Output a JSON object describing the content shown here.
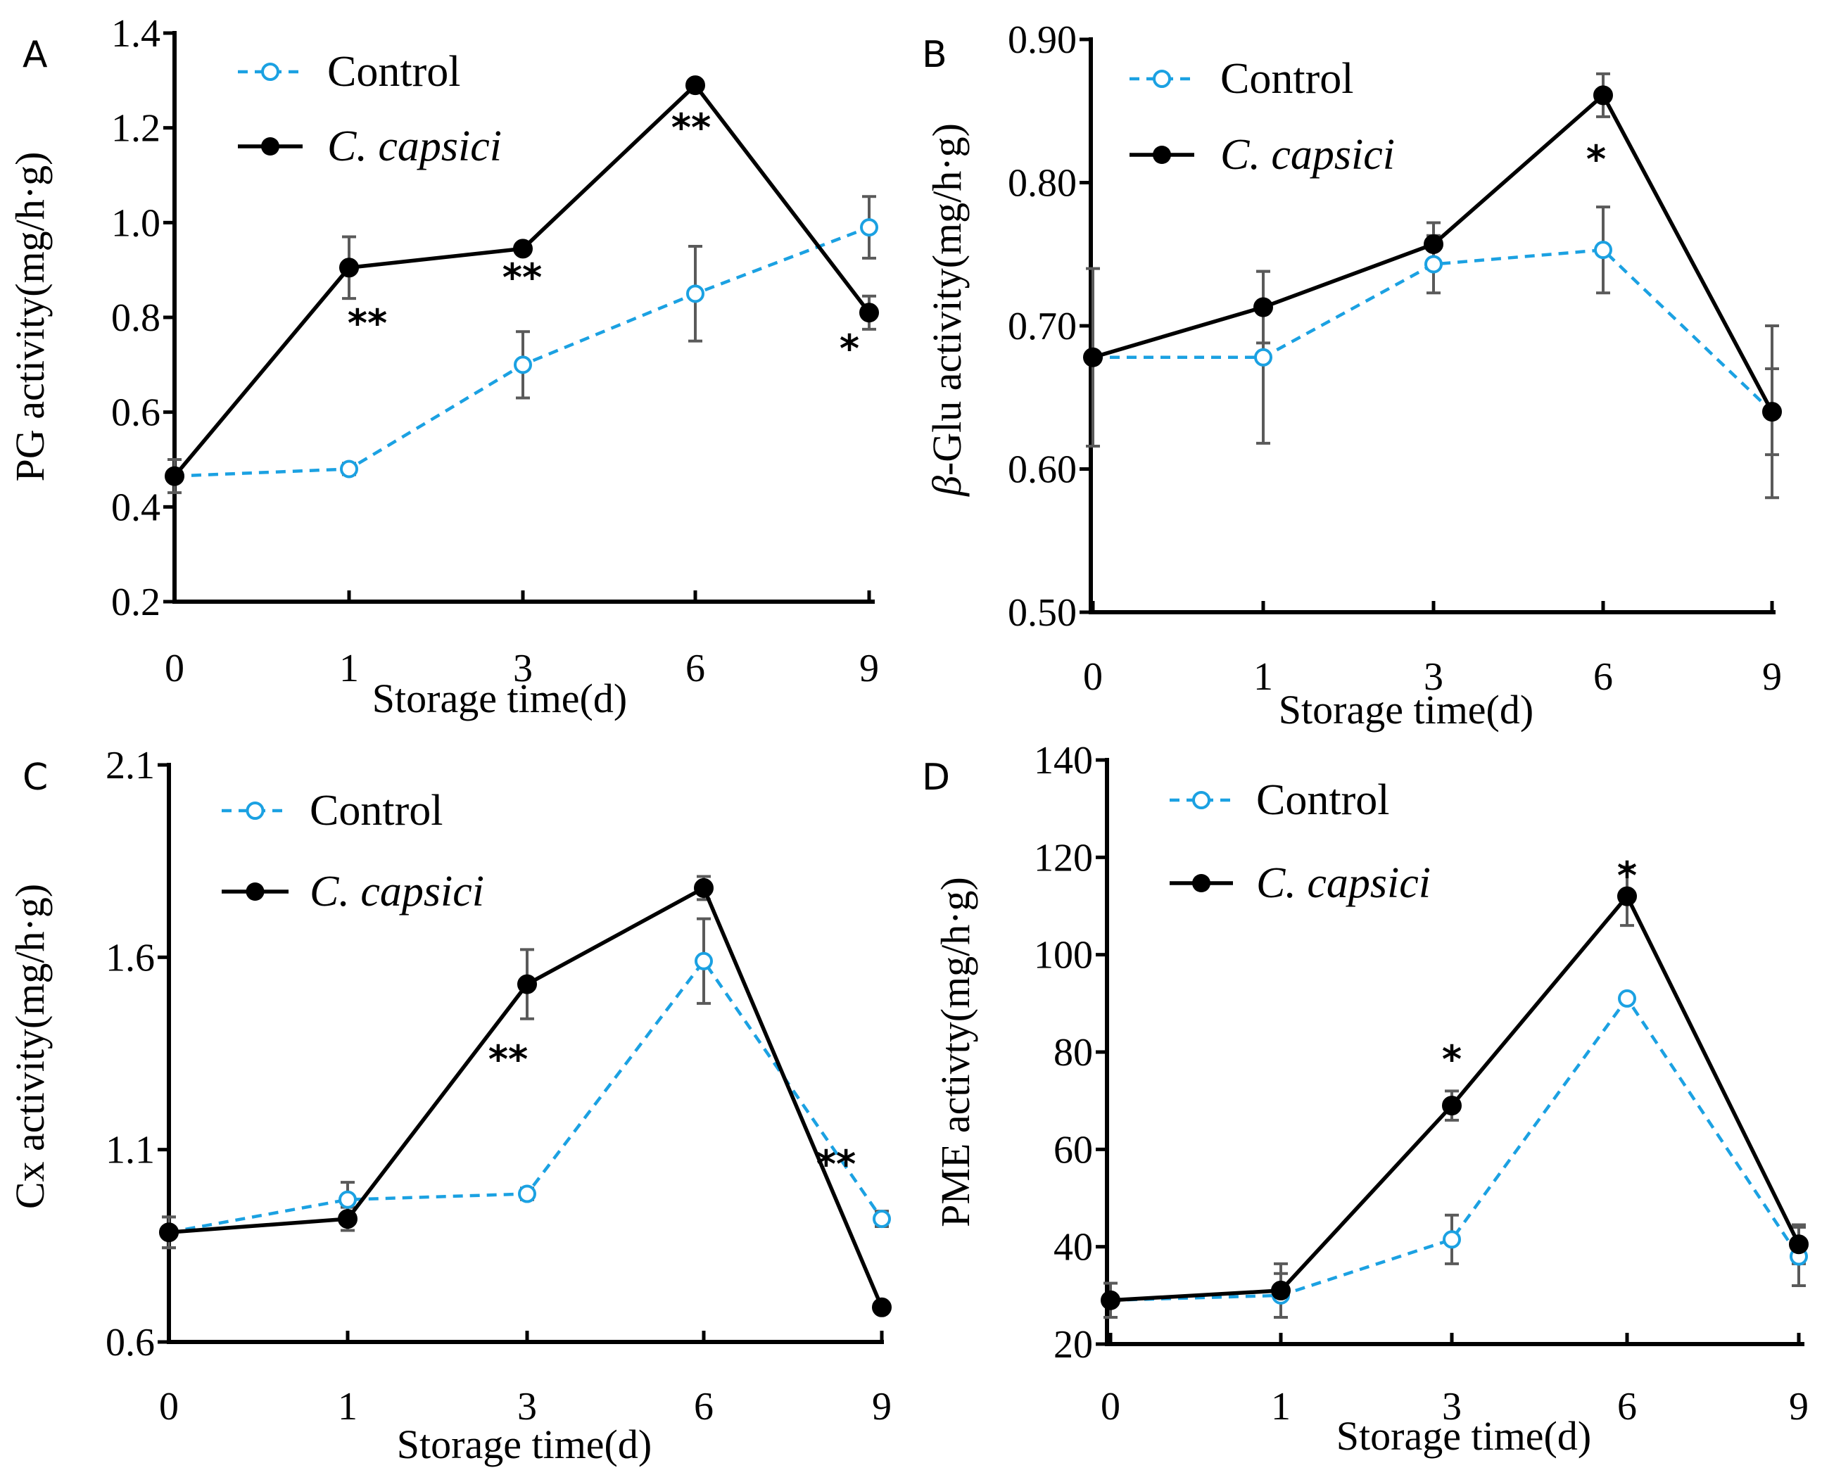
{
  "colors": {
    "control": "#1BA1E2",
    "treated": "#000000",
    "axis": "#000000",
    "errorbar": "#5A5A5A"
  },
  "chart_data": [
    {
      "panel": "A",
      "type": "line",
      "ylabel": "PG activity(mg/h·g)",
      "xlabel": "Storage time(d)",
      "categories": [
        "0",
        "1",
        "3",
        "6",
        "9"
      ],
      "ylim": [
        0.2,
        1.4
      ],
      "yticks": [
        "0.2",
        "0.4",
        "0.6",
        "0.8",
        "1.0",
        "1.2",
        "1.4"
      ],
      "legend": [
        "Control",
        "C. capsici"
      ],
      "series": [
        {
          "name": "Control",
          "values": [
            0.465,
            0.48,
            0.7,
            0.85,
            0.99
          ],
          "errors": [
            0,
            0.012,
            0.07,
            0.1,
            0.065
          ]
        },
        {
          "name": "C. capsici",
          "values": [
            0.465,
            0.905,
            0.945,
            1.29,
            0.81
          ],
          "errors": [
            0.035,
            0.065,
            0,
            0,
            0.035
          ]
        }
      ],
      "annotations": [
        "",
        "**",
        "**",
        "**",
        "*"
      ]
    },
    {
      "panel": "B",
      "type": "line",
      "ylabel": "β-Glu activity(mg/h·g)",
      "ylabel_symbol": "β",
      "ylabel_rest": "-Glu activity(mg/h·g)",
      "xlabel": "Storage time(d)",
      "categories": [
        "0",
        "1",
        "3",
        "6",
        "9"
      ],
      "ylim": [
        0.5,
        0.9
      ],
      "yticks": [
        "0.50",
        "0.60",
        "0.70",
        "0.80",
        "0.90"
      ],
      "legend": [
        "Control",
        "C. capsici"
      ],
      "series": [
        {
          "name": "Control",
          "values": [
            0.678,
            0.678,
            0.743,
            0.753,
            0.64
          ],
          "errors": [
            0.062,
            0.06,
            0.02,
            0.03,
            0.03
          ]
        },
        {
          "name": "C. capsici",
          "values": [
            0.678,
            0.713,
            0.757,
            0.861,
            0.64
          ],
          "errors": [
            0,
            0.025,
            0.015,
            0.015,
            0.06
          ]
        }
      ],
      "annotations": [
        "",
        "",
        "",
        "*",
        ""
      ]
    },
    {
      "panel": "C",
      "type": "line",
      "ylabel": "Cx activity(mg/h·g)",
      "xlabel": "Storage time(d)",
      "categories": [
        "0",
        "1",
        "3",
        "6",
        "9"
      ],
      "ylim": [
        0.6,
        2.1
      ],
      "yticks": [
        "0.6",
        "1.1",
        "1.6",
        "2.1"
      ],
      "legend": [
        "Control",
        "C. capsici"
      ],
      "series": [
        {
          "name": "Control",
          "values": [
            0.885,
            0.97,
            0.985,
            1.59,
            0.92
          ],
          "errors": [
            0.04,
            0.045,
            0.015,
            0.11,
            0.02
          ]
        },
        {
          "name": "C. capsici",
          "values": [
            0.885,
            0.92,
            1.53,
            1.78,
            0.69
          ],
          "errors": [
            0.04,
            0.03,
            0.09,
            0.03,
            0
          ]
        }
      ],
      "annotations": [
        "",
        "",
        "**",
        "",
        "**"
      ]
    },
    {
      "panel": "D",
      "type": "line",
      "ylabel": "PME activty(mg/h·g)",
      "xlabel": "Storage time(d)",
      "categories": [
        "0",
        "1",
        "3",
        "6",
        "9"
      ],
      "ylim": [
        20,
        140
      ],
      "yticks": [
        "20",
        "40",
        "60",
        "80",
        "100",
        "120",
        "140"
      ],
      "legend": [
        "Control",
        "C. capsici"
      ],
      "series": [
        {
          "name": "Control",
          "values": [
            29,
            30,
            41.5,
            91,
            38
          ],
          "errors": [
            3.5,
            4.5,
            5,
            0,
            6
          ]
        },
        {
          "name": "C. capsici",
          "values": [
            29,
            31,
            69,
            112,
            40.5
          ],
          "errors": [
            0,
            5.5,
            3,
            6,
            4
          ]
        }
      ],
      "annotations": [
        "",
        "",
        "*",
        "*",
        ""
      ]
    }
  ]
}
